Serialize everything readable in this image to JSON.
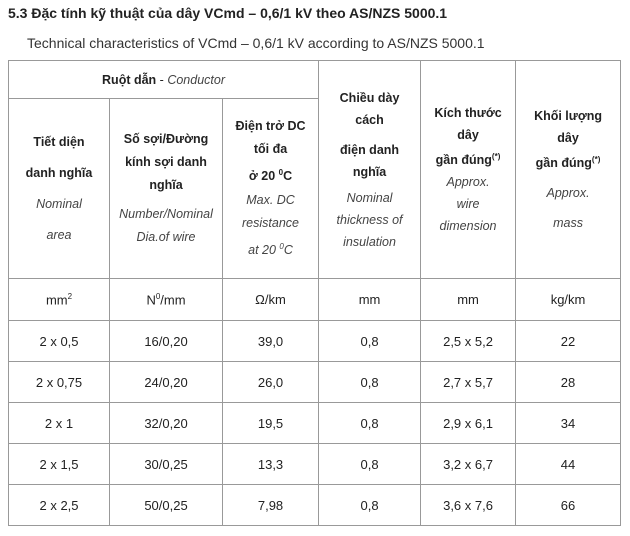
{
  "heading": "5.3 Đặc tính kỹ thuật của dây VCmd – 0,6/1 kV theo AS/NZS 5000.1",
  "subheading": "Technical characteristics of VCmd – 0,6/1 kV according to AS/NZS 5000.1",
  "conductor_group": {
    "vi": "Ruột dẫn",
    "sep": " - ",
    "en": "Conductor"
  },
  "columns": {
    "area": {
      "vi1": "Tiết diện",
      "vi2": "danh nghĩa",
      "en1": "Nominal",
      "en2": "area"
    },
    "wire": {
      "vi1": "Số sợi/Đường",
      "vi2": "kính sợi danh",
      "vi3": "nghĩa",
      "en1": "Number/Nominal",
      "en2": "Dia.of wire"
    },
    "resistance": {
      "vi1": "Điện trở DC",
      "vi2": "tối đa",
      "vi3": "ở 20",
      "deg": "0",
      "c": "C",
      "en1": "Max. DC",
      "en2": "resistance",
      "en3": "at 20",
      "en_deg": "0",
      "en_c": "C"
    },
    "insulation": {
      "vi1": "Chiều dày",
      "vi2": "cách",
      "vi3": "điện danh",
      "vi4": "nghĩa",
      "en1": "Nominal",
      "en2": "thickness of",
      "en3": "insulation"
    },
    "dimension": {
      "vi1": "Kích thước",
      "vi2": "dây",
      "vi3": "gần đúng",
      "mark": "(*)",
      "en1": "Approx.",
      "en2": "wire",
      "en3": "dimension"
    },
    "mass": {
      "vi1": "Khối lượng",
      "vi2": "dây",
      "vi3": "gần đúng",
      "mark": "(*)",
      "en1": "Approx.",
      "en2": "mass"
    }
  },
  "units": {
    "area": "mm",
    "area_sup": "2",
    "wire_n": "N",
    "wire_sup": "0",
    "wire_rest": "/mm",
    "resistance": "Ω/km",
    "insulation": "mm",
    "dimension": "mm",
    "mass": "kg/km"
  },
  "rows": [
    {
      "area": "2 x 0,5",
      "wire": "16/0,20",
      "resistance": "39,0",
      "insulation": "0,8",
      "dimension": "2,5 x 5,2",
      "mass": "22"
    },
    {
      "area": "2 x 0,75",
      "wire": "24/0,20",
      "resistance": "26,0",
      "insulation": "0,8",
      "dimension": "2,7 x 5,7",
      "mass": "28"
    },
    {
      "area": "2 x 1",
      "wire": "32/0,20",
      "resistance": "19,5",
      "insulation": "0,8",
      "dimension": "2,9 x 6,1",
      "mass": "34"
    },
    {
      "area": "2 x 1,5",
      "wire": "30/0,25",
      "resistance": "13,3",
      "insulation": "0,8",
      "dimension": "3,2 x 6,7",
      "mass": "44"
    },
    {
      "area": "2 x 2,5",
      "wire": "50/0,25",
      "resistance": "7,98",
      "insulation": "0,8",
      "dimension": "3,6 x 7,6",
      "mass": "66"
    }
  ]
}
